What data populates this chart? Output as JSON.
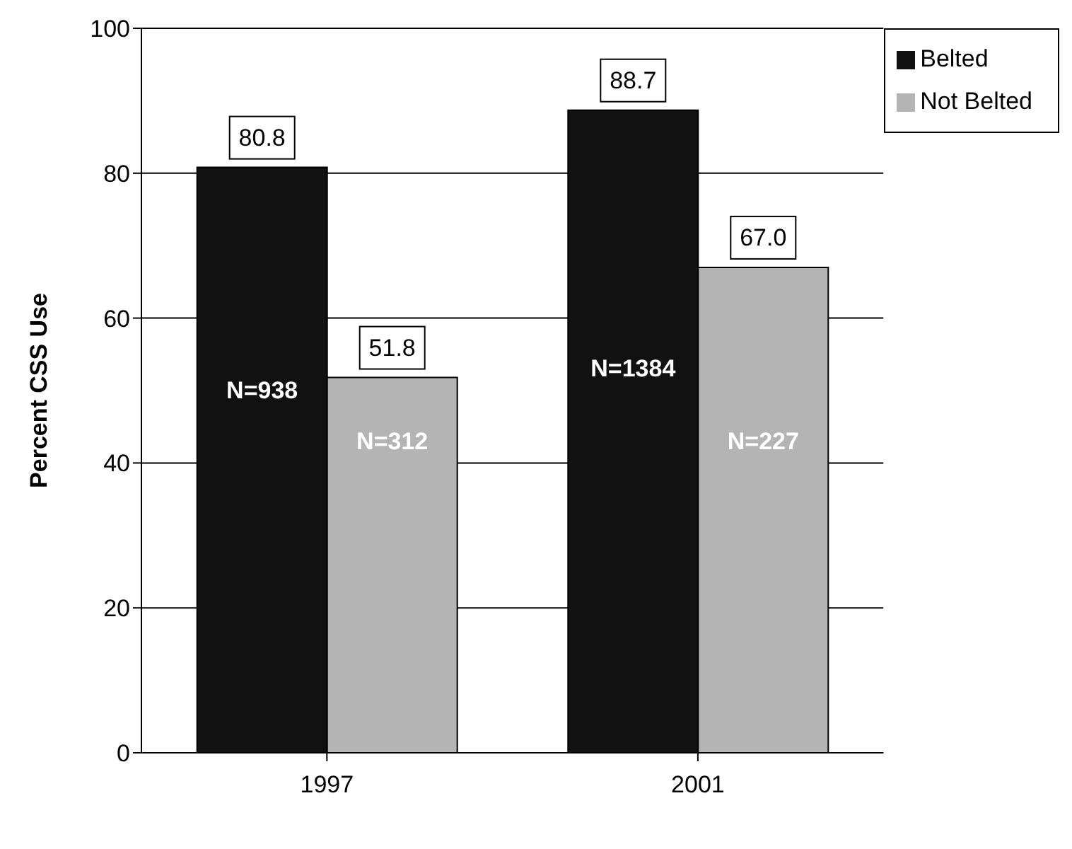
{
  "chart_data": {
    "type": "bar",
    "ylabel": "Percent CSS Use",
    "categories": [
      "1997",
      "2001"
    ],
    "series": [
      {
        "name": "Belted",
        "color": "#111111",
        "values": [
          80.8,
          88.7
        ],
        "value_labels": [
          "80.8",
          "88.7"
        ]
      },
      {
        "name": "Not Belted",
        "color": "#b4b4b4",
        "values": [
          51.8,
          67.0
        ],
        "value_labels": [
          "51.8",
          "67.0"
        ]
      }
    ],
    "annotations": [
      {
        "text": "N=938",
        "x": "1997",
        "y": 50
      },
      {
        "text": "N=312",
        "x": "1997",
        "y": 43
      },
      {
        "text": "N=1384",
        "x": "2001",
        "y": 53
      },
      {
        "text": "N=227",
        "x": "2001",
        "y": 43
      }
    ],
    "ylim": [
      0,
      100
    ],
    "yticks": [
      0,
      20,
      40,
      60,
      80,
      100
    ],
    "grid": "y",
    "legend": "top right"
  }
}
